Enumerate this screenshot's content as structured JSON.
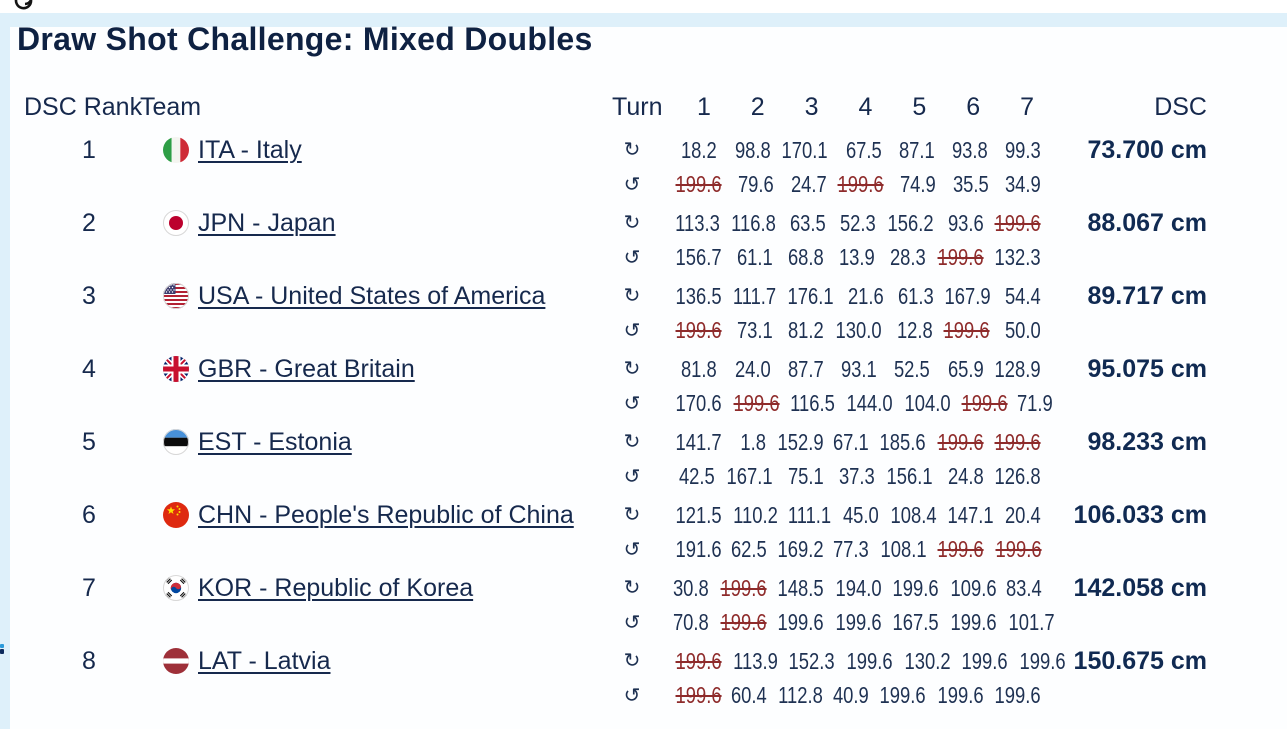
{
  "page": {
    "title": "Draw Shot Challenge: Mixed Doubles"
  },
  "colors": {
    "band": "#def0fa",
    "navy": "#16294d",
    "value": "#1e3152",
    "red": "#8e2b2b",
    "title": "#0e2142",
    "dsc": "#102a52"
  },
  "table": {
    "headers": {
      "rank": "DSC Rank",
      "team": "Team",
      "turn": "Turn",
      "turns": [
        "1",
        "2",
        "3",
        "4",
        "5",
        "6",
        "7"
      ],
      "dsc": "DSC"
    },
    "turn_icons": {
      "cw": "↻",
      "ccw": "↺"
    },
    "unit": "cm",
    "teams": [
      {
        "rank": "1",
        "code": "ITA",
        "label": "ITA - Italy",
        "dsc": "73.700 cm",
        "cw": {
          "values": [
            "18.2",
            "98.8",
            "170.1",
            "67.5",
            "87.1",
            "93.8",
            "99.3"
          ],
          "struck": []
        },
        "ccw": {
          "values": [
            "199.6",
            "79.6",
            "24.7",
            "199.6",
            "74.9",
            "35.5",
            "34.9"
          ],
          "struck": [
            0,
            3
          ]
        }
      },
      {
        "rank": "2",
        "code": "JPN",
        "label": "JPN - Japan",
        "dsc": "88.067 cm",
        "cw": {
          "values": [
            "113.3",
            "116.8",
            "63.5",
            "52.3",
            "156.2",
            "93.6",
            "199.6"
          ],
          "struck": [
            6
          ]
        },
        "ccw": {
          "values": [
            "156.7",
            "61.1",
            "68.8",
            "13.9",
            "28.3",
            "199.6",
            "132.3"
          ],
          "struck": [
            5
          ]
        }
      },
      {
        "rank": "3",
        "code": "USA",
        "label": "USA - United States of America",
        "dsc": "89.717 cm",
        "cw": {
          "values": [
            "136.5",
            "111.7",
            "176.1",
            "21.6",
            "61.3",
            "167.9",
            "54.4"
          ],
          "struck": []
        },
        "ccw": {
          "values": [
            "199.6",
            "73.1",
            "81.2",
            "130.0",
            "12.8",
            "199.6",
            "50.0"
          ],
          "struck": [
            0,
            5
          ]
        }
      },
      {
        "rank": "4",
        "code": "GBR",
        "label": "GBR - Great Britain",
        "dsc": "95.075 cm",
        "cw": {
          "values": [
            "81.8",
            "24.0",
            "87.7",
            "93.1",
            "52.5",
            "65.9",
            "128.9"
          ],
          "struck": []
        },
        "ccw": {
          "values": [
            "170.6",
            "199.6",
            "116.5",
            "144.0",
            "104.0",
            "199.6",
            "71.9"
          ],
          "struck": [
            1,
            5
          ]
        }
      },
      {
        "rank": "5",
        "code": "EST",
        "label": "EST - Estonia",
        "dsc": "98.233 cm",
        "cw": {
          "values": [
            "141.7",
            "1.8",
            "152.9",
            "67.1",
            "185.6",
            "199.6",
            "199.6"
          ],
          "struck": [
            5,
            6
          ]
        },
        "ccw": {
          "values": [
            "42.5",
            "167.1",
            "75.1",
            "37.3",
            "156.1",
            "24.8",
            "126.8"
          ],
          "struck": []
        }
      },
      {
        "rank": "6",
        "code": "CHN",
        "label": "CHN - People's Republic of China",
        "dsc": "106.033 cm",
        "cw": {
          "values": [
            "121.5",
            "110.2",
            "111.1",
            "45.0",
            "108.4",
            "147.1",
            "20.4"
          ],
          "struck": []
        },
        "ccw": {
          "values": [
            "191.6",
            "62.5",
            "169.2",
            "77.3",
            "108.1",
            "199.6",
            "199.6"
          ],
          "struck": [
            5,
            6
          ]
        }
      },
      {
        "rank": "7",
        "code": "KOR",
        "label": "KOR - Republic of Korea",
        "dsc": "142.058 cm",
        "cw": {
          "values": [
            "30.8",
            "199.6",
            "148.5",
            "194.0",
            "199.6",
            "109.6",
            "83.4"
          ],
          "struck": [
            1
          ]
        },
        "ccw": {
          "values": [
            "70.8",
            "199.6",
            "199.6",
            "199.6",
            "167.5",
            "199.6",
            "101.7"
          ],
          "struck": [
            1
          ]
        }
      },
      {
        "rank": "8",
        "code": "LAT",
        "label": "LAT - Latvia",
        "dsc": "150.675 cm",
        "cw": {
          "values": [
            "199.6",
            "113.9",
            "152.3",
            "199.6",
            "130.2",
            "199.6",
            "199.6"
          ],
          "struck": [
            0
          ]
        },
        "ccw": {
          "values": [
            "199.6",
            "60.4",
            "112.8",
            "40.9",
            "199.6",
            "199.6",
            "199.6"
          ],
          "struck": [
            0
          ]
        }
      }
    ]
  }
}
